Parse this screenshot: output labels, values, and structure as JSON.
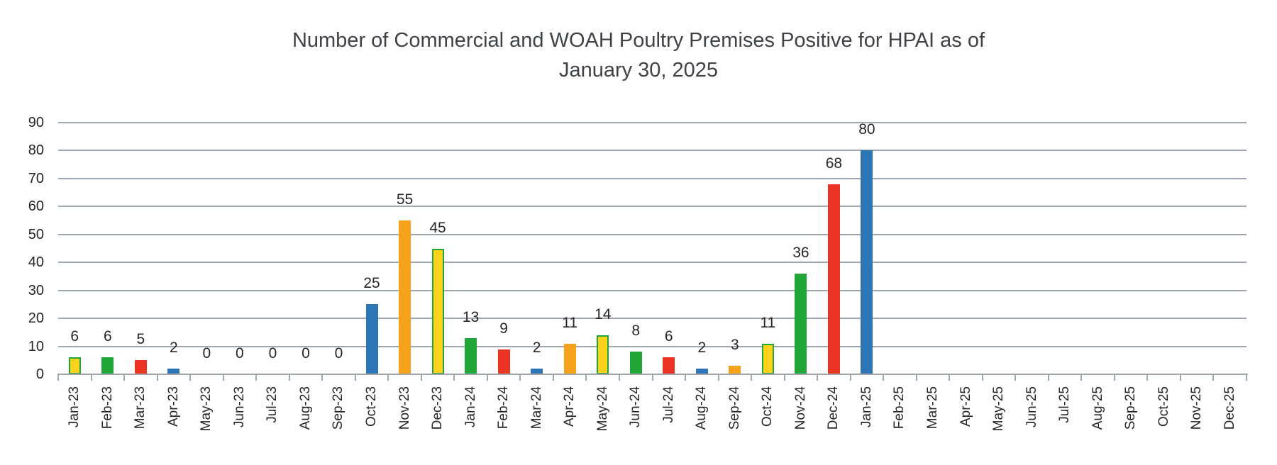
{
  "title": {
    "line1": "Number of Commercial and WOAH Poultry Premises Positive for HPAI as of",
    "line2": "January 30, 2025"
  },
  "chart_data": {
    "type": "bar",
    "title": "Number of Commercial and WOAH Poultry Premises Positive for HPAI as of January 30, 2025",
    "xlabel": "",
    "ylabel": "",
    "ylim": [
      0,
      90
    ],
    "ytick_step": 10,
    "grid": true,
    "legend_position": "none",
    "value_labels": "outside-end",
    "categories": [
      "Jan-23",
      "Feb-23",
      "Mar-23",
      "Apr-23",
      "May-23",
      "Jun-23",
      "Jul-23",
      "Aug-23",
      "Sep-23",
      "Oct-23",
      "Nov-23",
      "Dec-23",
      "Jan-24",
      "Feb-24",
      "Mar-24",
      "Apr-24",
      "May-24",
      "Jun-24",
      "Jul-24",
      "Aug-24",
      "Sep-24",
      "Oct-24",
      "Nov-24",
      "Dec-24",
      "Jan-25",
      "Feb-25",
      "Mar-25",
      "Apr-25",
      "May-25",
      "Jun-25",
      "Jul-25",
      "Aug-25",
      "Sep-25",
      "Oct-25",
      "Nov-25",
      "Dec-25"
    ],
    "values": [
      6,
      6,
      5,
      2,
      0,
      0,
      0,
      0,
      0,
      25,
      55,
      45,
      13,
      9,
      2,
      11,
      14,
      8,
      6,
      2,
      3,
      11,
      36,
      68,
      80,
      null,
      null,
      null,
      null,
      null,
      null,
      null,
      null,
      null,
      null,
      null
    ],
    "bar_colors": [
      "yellow",
      "green",
      "red",
      "blue",
      null,
      null,
      null,
      null,
      null,
      "blue",
      "orange",
      "yellow",
      "green",
      "red",
      "blue",
      "orange",
      "yellow",
      "green",
      "red",
      "blue",
      "orange",
      "yellow",
      "green",
      "red",
      "blue",
      null,
      null,
      null,
      null,
      null,
      null,
      null,
      null,
      null,
      null,
      null
    ],
    "palette": {
      "blue": "#2e75b6",
      "orange": "#f7a21b",
      "yellow": "#ffd31c",
      "green": "#23a638",
      "red": "#ec3424",
      "yellow_border": "#23a638"
    }
  },
  "colors": {
    "background": "#ffffff",
    "gridline": "#a0a6ad",
    "axis": "#a0a6ad",
    "tick_text": "#262626",
    "title_text": "#3f4348"
  }
}
